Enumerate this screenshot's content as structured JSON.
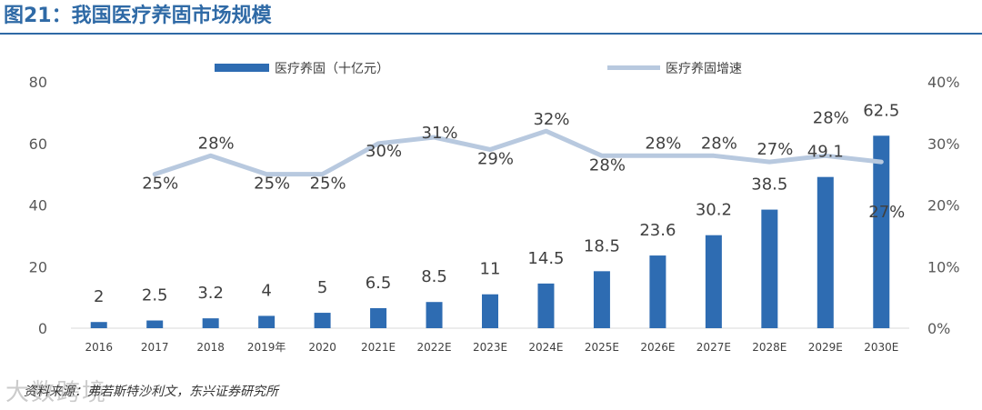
{
  "title": "图21：我国医疗养固市场规模",
  "source": "资料来源：弗若斯特沙利文，东兴证券研究所",
  "watermark": "大数跨境",
  "colors": {
    "bar": "#2e6cb2",
    "line": "#b8c9df",
    "title": "#2f6aa6"
  },
  "chart_data": {
    "type": "bar",
    "categories": [
      "2016",
      "2017",
      "2018",
      "2019年",
      "2020",
      "2021E",
      "2022E",
      "2023E",
      "2024E",
      "2025E",
      "2026E",
      "2027E",
      "2028E",
      "2029E",
      "2030E"
    ],
    "series": [
      {
        "name": "医疗养固（十亿元）",
        "type": "bar",
        "axis": "left",
        "values": [
          2,
          2.5,
          3.2,
          4,
          5,
          6.5,
          8.5,
          11,
          14.5,
          18.5,
          23.6,
          30.2,
          38.5,
          49.1,
          62.5
        ],
        "labels": [
          "2",
          "2.5",
          "3.2",
          "4",
          "5",
          "6.5",
          "8.5",
          "11",
          "14.5",
          "18.5",
          "23.6",
          "30.2",
          "38.5",
          "49.1",
          "62.5"
        ]
      },
      {
        "name": "医疗养固增速",
        "type": "line",
        "axis": "right",
        "values": [
          null,
          25,
          28,
          25,
          25,
          30,
          31,
          29,
          32,
          28,
          28,
          28,
          27,
          28,
          27
        ],
        "labels": [
          "",
          "25%",
          "28%",
          "25%",
          "25%",
          "30%",
          "31%",
          "29%",
          "32%",
          "28%",
          "28%",
          "28%",
          "27%",
          "28%",
          "27%"
        ]
      }
    ],
    "left_axis": {
      "range": [
        0,
        80
      ],
      "ticks": [
        "0",
        "20",
        "40",
        "60",
        "80"
      ]
    },
    "right_axis": {
      "range": [
        0,
        40
      ],
      "ticks": [
        "0%",
        "10%",
        "20%",
        "30%",
        "40%"
      ]
    },
    "legend": "top-center",
    "grid": false
  }
}
